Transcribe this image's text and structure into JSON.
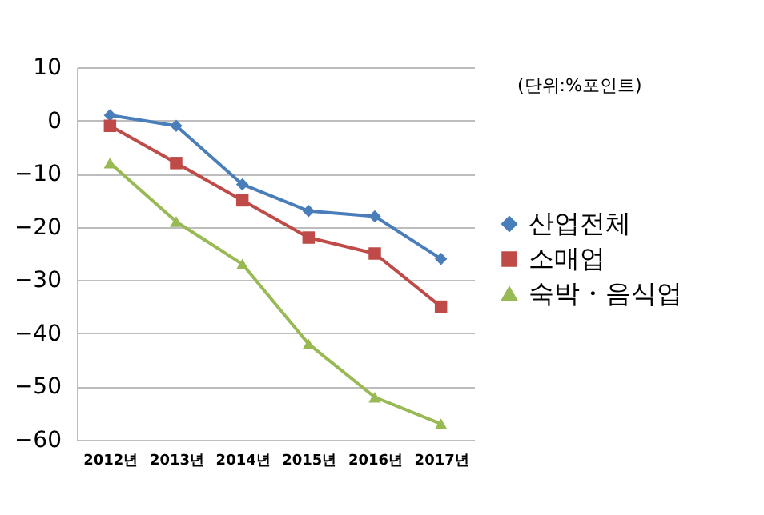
{
  "chart_data": {
    "type": "line",
    "categories": [
      "2012년",
      "2013년",
      "2014년",
      "2015년",
      "2016년",
      "2017년"
    ],
    "series": [
      {
        "name": "산업전체",
        "color": "#4a7ebb",
        "marker": "diamond",
        "values": [
          1,
          -1,
          -12,
          -17,
          -18,
          -26
        ]
      },
      {
        "name": "소매업",
        "color": "#be4b48",
        "marker": "square",
        "values": [
          -1,
          -8,
          -15,
          -22,
          -25,
          -35
        ]
      },
      {
        "name": "숙박・음식업",
        "color": "#98b954",
        "marker": "triangle",
        "values": [
          -8,
          -19,
          -27,
          -42,
          -52,
          -57
        ]
      }
    ],
    "ylim": [
      -60,
      10
    ],
    "yticks": [
      -60,
      -50,
      -40,
      -30,
      -20,
      -10,
      0,
      10
    ],
    "grid": "y",
    "legend": "right",
    "line_style": "solid",
    "annotations": [
      "(단위:%포인트)"
    ]
  }
}
